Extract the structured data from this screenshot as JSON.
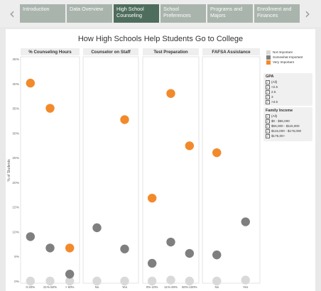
{
  "nav": {
    "tabs": [
      {
        "label": "Introduction",
        "active": false
      },
      {
        "label": "Data Overview",
        "active": false
      },
      {
        "label": "High School Counseling",
        "active": true
      },
      {
        "label": "School Preferences",
        "active": false
      },
      {
        "label": "Programs and Majors",
        "active": false
      },
      {
        "label": "Enrollment and Finances",
        "active": false
      }
    ],
    "prev_icon": "chevron-left-icon",
    "next_icon": "chevron-right-icon"
  },
  "chart_data": {
    "type": "scatter",
    "title": "How High Schools Help Students Go to College",
    "ylabel": "% of Students",
    "ylim": [
      0,
      45
    ],
    "y_ticks": [
      "0%",
      "5%",
      "10%",
      "15%",
      "20%",
      "25%",
      "30%",
      "35%",
      "40%",
      "45%"
    ],
    "panels": [
      {
        "name": "% Counseling Hours",
        "categories": [
          "0-20%",
          "21%-50%",
          "> 50%"
        ],
        "series": [
          {
            "name": "Not Important",
            "values": [
              0,
              0,
              0
            ]
          },
          {
            "name": "Somewhat Important",
            "values": [
              9,
              6.7,
              1.4
            ]
          },
          {
            "name": "Very Important",
            "values": [
              40.1,
              35,
              6.7
            ]
          }
        ]
      },
      {
        "name": "Counselor on Staff",
        "categories": [
          "No",
          "Yes"
        ],
        "series": [
          {
            "name": "Not Important",
            "values": [
              0,
              0
            ]
          },
          {
            "name": "Somewhat Important",
            "values": [
              10.8,
              6.5
            ]
          },
          {
            "name": "Very Important",
            "values": [
              null,
              32.7
            ]
          }
        ]
      },
      {
        "name": "Test Preparation",
        "categories": [
          "0%-10%",
          "11%-49%",
          "50%-100%"
        ],
        "series": [
          {
            "name": "Not Important",
            "values": [
              0,
              0.2,
              0
            ]
          },
          {
            "name": "Somewhat Important",
            "values": [
              3.6,
              7.9,
              5.6
            ]
          },
          {
            "name": "Very Important",
            "values": [
              16.8,
              38,
              27.4
            ]
          }
        ]
      },
      {
        "name": "FAFSA Assistance",
        "categories": [
          "No",
          "Yes"
        ],
        "series": [
          {
            "name": "Not Important",
            "values": [
              0,
              0.2
            ]
          },
          {
            "name": "Somewhat Important",
            "values": [
              5.3,
              12
            ]
          },
          {
            "name": "Very Important",
            "values": [
              26,
              null
            ]
          }
        ]
      }
    ],
    "colors": {
      "Not Important": "#d9d9d9",
      "Somewhat Important": "#7f7f7f",
      "Very Important": "#f28a2b"
    },
    "grid": false,
    "legend_position": "right"
  },
  "legend": {
    "importance": [
      {
        "label": "Not Important",
        "color": "#d9d9d9"
      },
      {
        "label": "Somewhat Important",
        "color": "#7f7f7f"
      },
      {
        "label": "Very Important",
        "color": "#f28a2b"
      }
    ],
    "gpa": {
      "title": "GPA",
      "options": [
        "(All)",
        "<2.5",
        "2.5",
        "3",
        ">3.5"
      ]
    },
    "family_income": {
      "title": "Family Income",
      "options": [
        "(All)",
        "$0 - $55,000",
        "$55,000 - $115,000",
        "$115,000 - $175,000",
        "$175,00+"
      ]
    }
  }
}
